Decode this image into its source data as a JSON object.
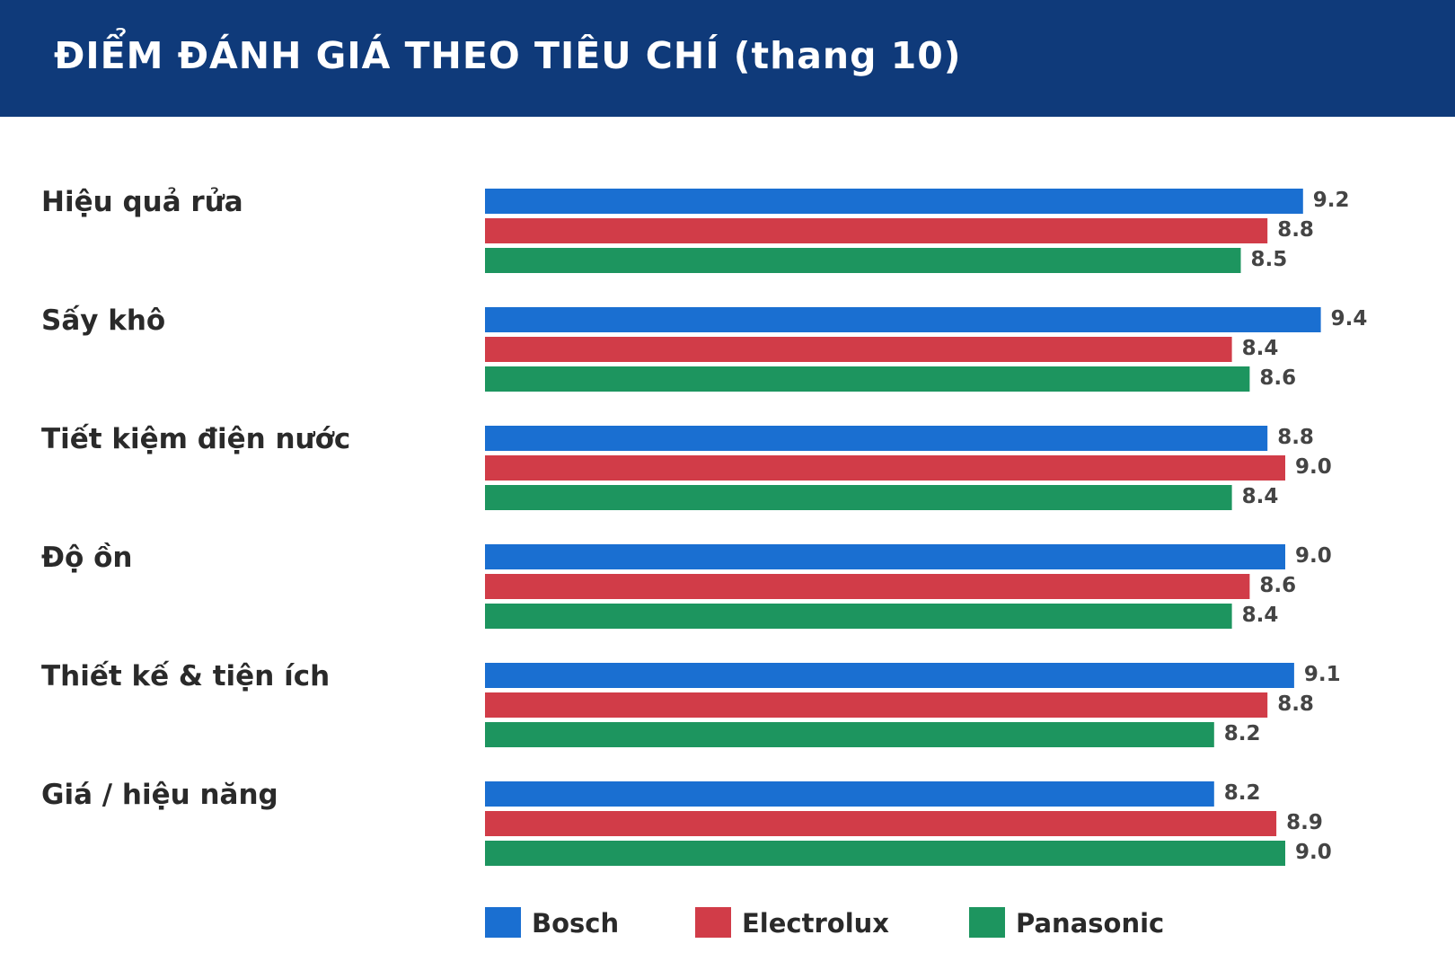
{
  "header": {
    "title": "ĐIỂM ĐÁNH GIÁ THEO TIÊU CHÍ (thang 10)"
  },
  "colors": {
    "header_bg": "#0f3a7a",
    "Bosch": "#1a6fd1",
    "Electrolux": "#d13c48",
    "Panasonic": "#1d955f"
  },
  "chart_data": {
    "type": "bar",
    "orientation": "horizontal",
    "title": "ĐIỂM ĐÁNH GIÁ THEO TIÊU CHÍ (thang 10)",
    "categories": [
      "Hiệu quả rửa",
      "Sấy khô",
      "Tiết kiệm điện nước",
      "Độ ồn",
      "Thiết kế & tiện ích",
      "Giá / hiệu năng"
    ],
    "series": [
      {
        "name": "Bosch",
        "color": "#1a6fd1",
        "values": [
          9.2,
          9.4,
          8.8,
          9.0,
          9.1,
          8.2
        ]
      },
      {
        "name": "Electrolux",
        "color": "#d13c48",
        "values": [
          8.8,
          8.4,
          9.0,
          8.6,
          8.8,
          8.9
        ]
      },
      {
        "name": "Panasonic",
        "color": "#1d955f",
        "values": [
          8.5,
          8.6,
          8.4,
          8.4,
          8.2,
          9.0
        ]
      }
    ],
    "xlim": [
      0,
      10
    ],
    "grid": false,
    "legend": "bottom"
  }
}
